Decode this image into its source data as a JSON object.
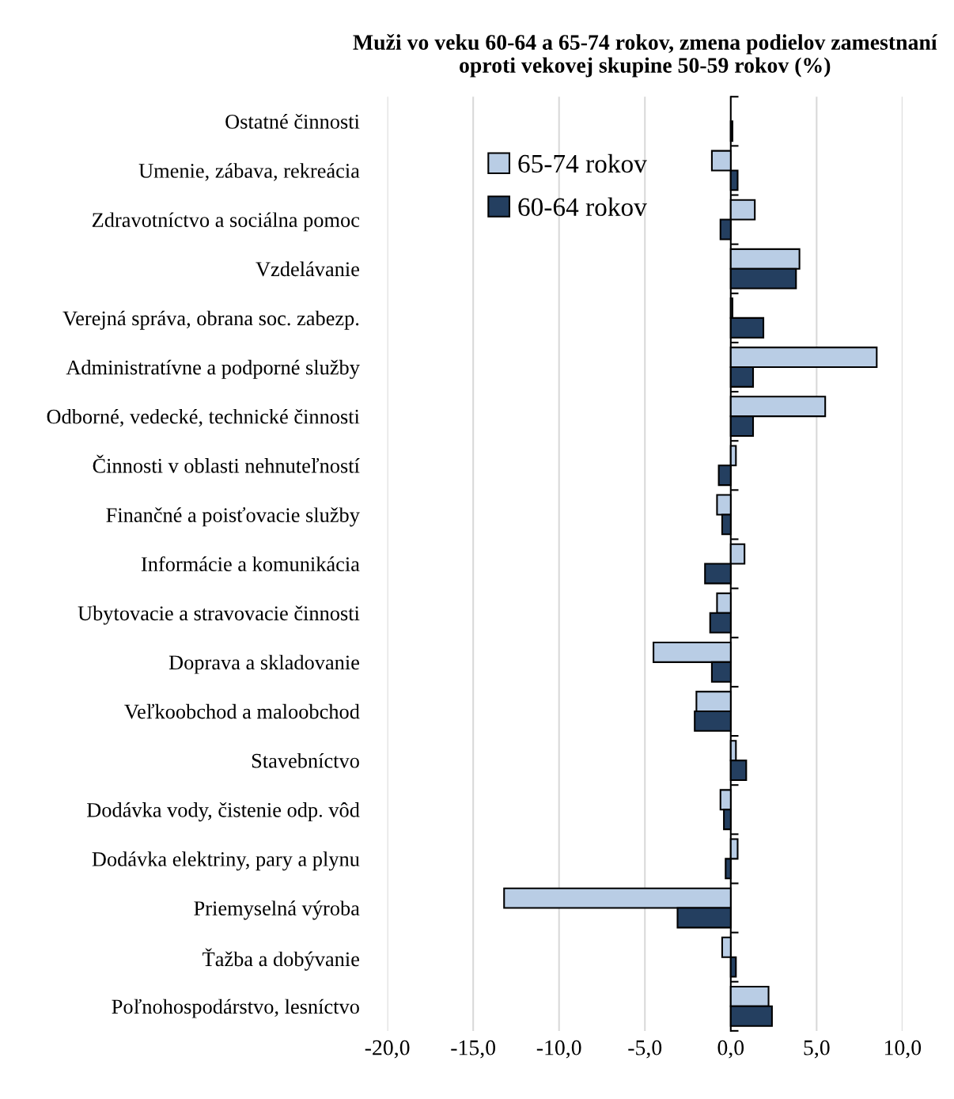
{
  "chart_data": {
    "type": "bar",
    "orientation": "horizontal",
    "title": "Muži vo veku 60-64 a 65-74 rokov, zmena podielov zamestnaní\noproti vekovej skupine 50-59 rokov (%)",
    "categories": [
      "Ostatné činnosti",
      "Umenie, zábava, rekreácia",
      "Zdravotníctvo a sociálna pomoc",
      "Vzdelávanie",
      "Verejná správa, obrana soc. zabezp.",
      "Administratívne a podporné služby",
      "Odborné, vedecké, technické činnosti",
      "Činnosti v oblasti nehnuteľností",
      "Finančné a poisťovacie služby",
      "Informácie a komunikácia",
      "Ubytovacie a stravovacie činnosti",
      "Doprava a skladovanie",
      "Veľkoobchod a maloobchod",
      "Stavebníctvo",
      "Dodávka vody, čistenie odp. vôd",
      "Dodávka elektriny, pary a plynu",
      "Priemyselná výroba",
      "Ťažba a dobývanie",
      "Poľnohospodárstvo, lesníctvo"
    ],
    "series": [
      {
        "name": "65-74 rokov",
        "color": "#b9cde5",
        "values": [
          null,
          -1.1,
          1.4,
          4.0,
          0.1,
          8.5,
          5.5,
          0.3,
          -0.8,
          0.8,
          -0.8,
          -4.5,
          -2.0,
          0.3,
          -0.6,
          0.4,
          -13.2,
          -0.5,
          2.2
        ]
      },
      {
        "name": "60-64 rokov",
        "color": "#243f60",
        "values": [
          0.1,
          0.4,
          -0.6,
          3.8,
          1.9,
          1.3,
          1.3,
          -0.7,
          -0.5,
          -1.5,
          -1.2,
          -1.1,
          -2.1,
          0.9,
          -0.4,
          -0.3,
          -3.1,
          0.3,
          2.4
        ]
      }
    ],
    "xlim": [
      -20,
      10
    ],
    "xticks": [
      {
        "value": -20,
        "label": "-20,0"
      },
      {
        "value": -15,
        "label": "-15,0"
      },
      {
        "value": -10,
        "label": "-10,0"
      },
      {
        "value": -5,
        "label": "-5,0"
      },
      {
        "value": 0,
        "label": "0,0"
      },
      {
        "value": 5,
        "label": "5,0"
      },
      {
        "value": 10,
        "label": "10,0"
      }
    ],
    "grid": "x",
    "legend": "top left"
  }
}
